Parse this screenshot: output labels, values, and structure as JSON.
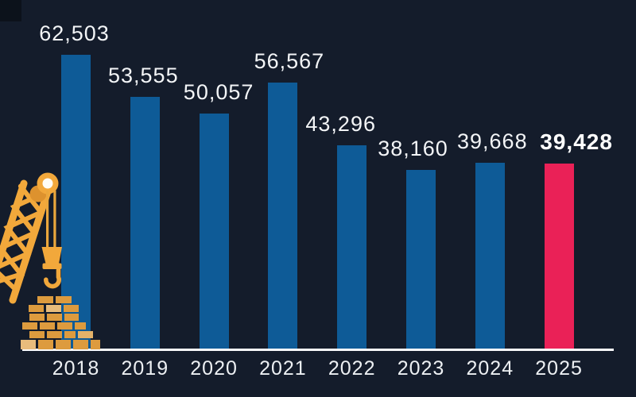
{
  "chart_data": {
    "type": "bar",
    "categories": [
      "2018",
      "2019",
      "2020",
      "2021",
      "2022",
      "2023",
      "2024",
      "2025"
    ],
    "values": [
      62503,
      53555,
      50057,
      56567,
      43296,
      38160,
      39668,
      39428
    ],
    "value_labels": [
      "62,503",
      "53,555",
      "50,057",
      "56,567",
      "43,296",
      "38,160",
      "39,668",
      "39,428"
    ],
    "title": "",
    "xlabel": "",
    "ylabel": "",
    "ylim": [
      0,
      62503
    ],
    "grid": false,
    "legend": false,
    "highlight_index": 7,
    "highlight_label_bold": true,
    "colors": {
      "background": "#141c2b",
      "bar": "#0e5b97",
      "highlight_bar": "#ea2157",
      "value_text": "#f3f5f7",
      "axis_line": "#fafbfc"
    }
  },
  "decoration": {
    "crane_icon": "construction-crane-with-hook",
    "brick_pile_icon": "brick-pyramid",
    "colors": {
      "crane_gold": "#f2a83b",
      "crane_gold_dark": "#dd922e",
      "pulley_center": "#fffdf6",
      "brick": "#dd9b3e",
      "brick_light": "#e8bc7c",
      "brick_medium": "#e4b269"
    }
  }
}
